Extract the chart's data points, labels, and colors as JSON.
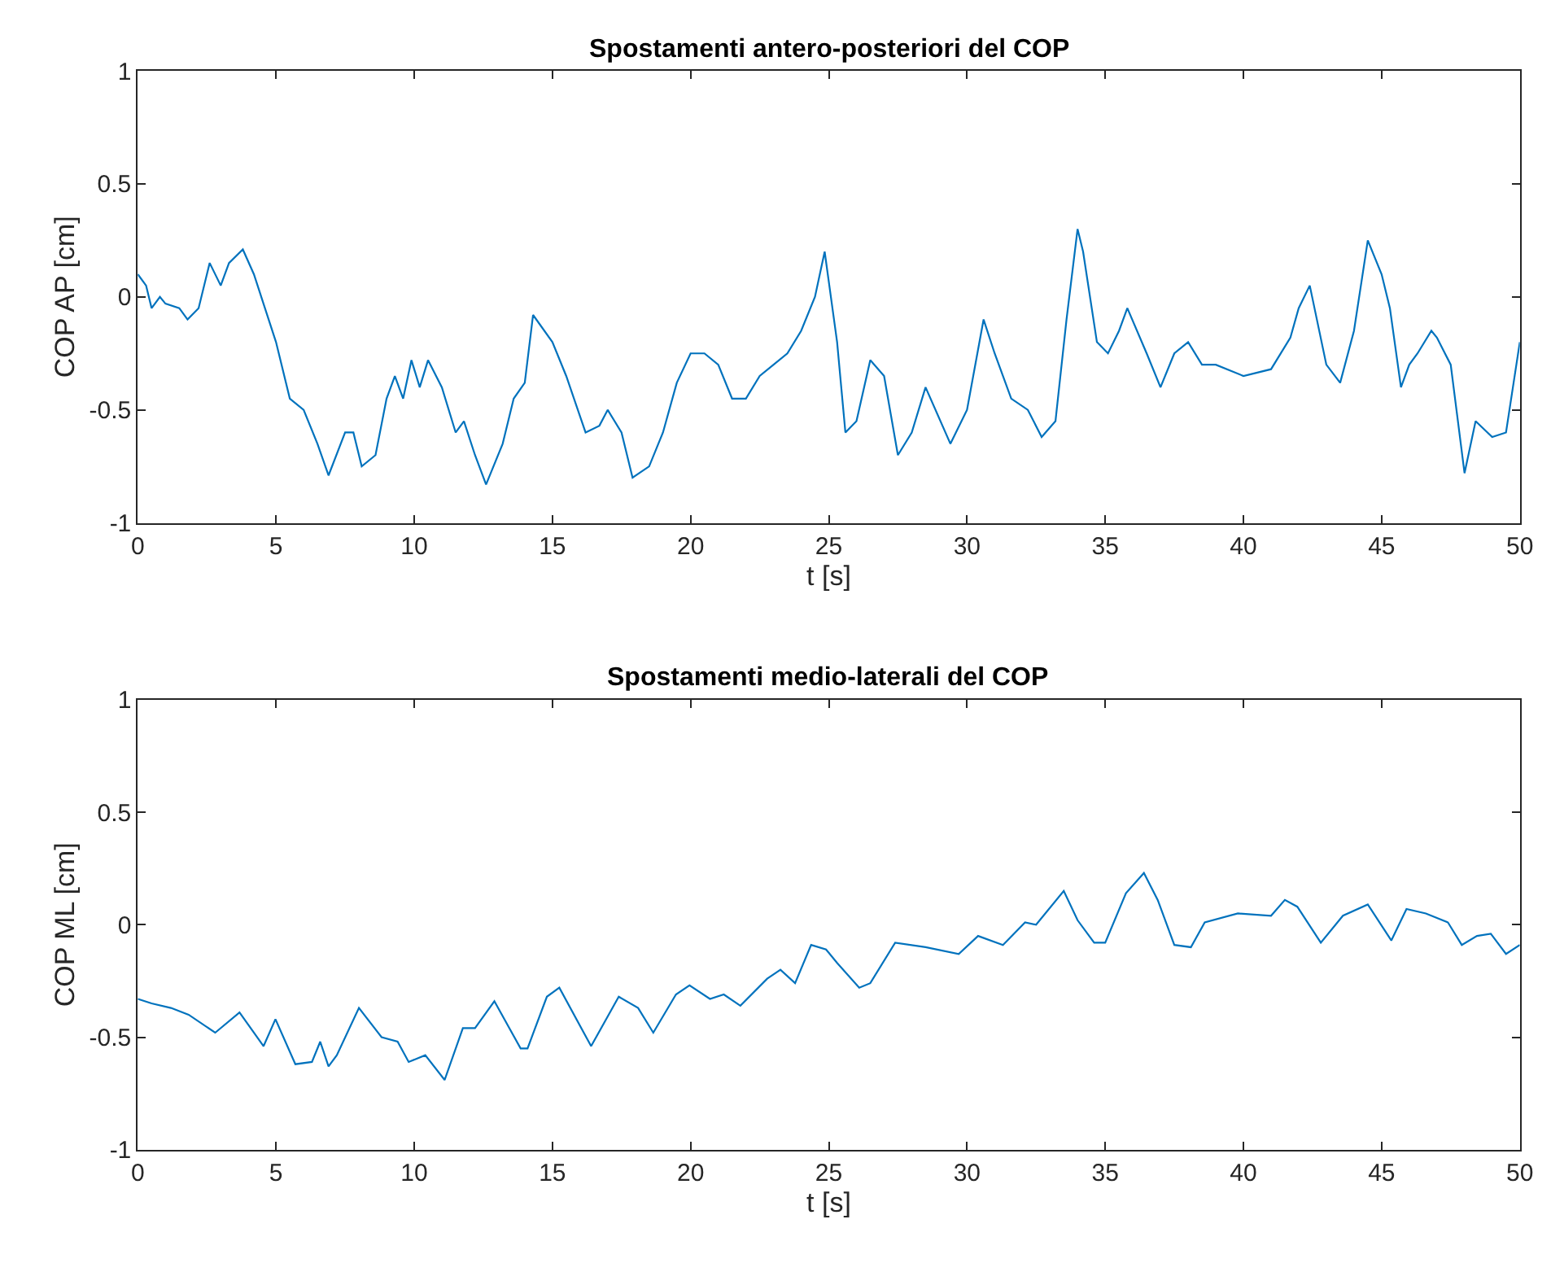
{
  "chart_data": [
    {
      "type": "line",
      "title": "Spostamenti antero-posteriori del COP",
      "xlabel": "t [s]",
      "ylabel": "COP AP [cm]",
      "xlim": [
        0,
        50
      ],
      "ylim": [
        -1,
        1
      ],
      "xticks": [
        0,
        5,
        10,
        15,
        20,
        25,
        30,
        35,
        40,
        45,
        50
      ],
      "yticks": [
        -1,
        -0.5,
        0,
        0.5,
        1
      ],
      "x": [
        0,
        0.3,
        0.5,
        0.8,
        1,
        1.5,
        1.8,
        2.2,
        2.6,
        3,
        3.3,
        3.8,
        4.2,
        4.6,
        5,
        5.5,
        6,
        6.5,
        6.9,
        7.5,
        7.8,
        8.1,
        8.6,
        9,
        9.3,
        9.6,
        9.9,
        10.2,
        10.5,
        11,
        11.5,
        11.8,
        12.2,
        12.6,
        13.2,
        13.6,
        14,
        14.3,
        15,
        15.5,
        16.2,
        16.7,
        17,
        17.5,
        17.9,
        18.5,
        19,
        19.5,
        20,
        20.5,
        21,
        21.5,
        22,
        22.5,
        23,
        23.5,
        24,
        24.5,
        24.85,
        25.3,
        25.6,
        26,
        26.5,
        27,
        27.5,
        28,
        28.5,
        29.4,
        30,
        30.6,
        31,
        31.6,
        32.2,
        32.7,
        33.2,
        33.6,
        34,
        34.2,
        34.7,
        35.1,
        35.5,
        35.8,
        36.5,
        37,
        37.5,
        38,
        38.5,
        39,
        40,
        41,
        41.7,
        42,
        42.4,
        43,
        43.5,
        44,
        44.5,
        45,
        45.3,
        45.7,
        46,
        46.3,
        46.8,
        47,
        47.5,
        48,
        48.4,
        49,
        49.5,
        50
      ],
      "series": [
        {
          "color": "#0072bd",
          "values": [
            0.1,
            0.05,
            -0.05,
            0.0,
            -0.03,
            -0.05,
            -0.1,
            -0.05,
            0.15,
            0.05,
            0.15,
            0.21,
            0.1,
            -0.05,
            -0.2,
            -0.45,
            -0.5,
            -0.65,
            -0.79,
            -0.6,
            -0.6,
            -0.75,
            -0.7,
            -0.45,
            -0.35,
            -0.45,
            -0.28,
            -0.4,
            -0.28,
            -0.4,
            -0.6,
            -0.55,
            -0.7,
            -0.83,
            -0.65,
            -0.45,
            -0.38,
            -0.08,
            -0.2,
            -0.35,
            -0.6,
            -0.57,
            -0.5,
            -0.6,
            -0.8,
            -0.75,
            -0.6,
            -0.38,
            -0.25,
            -0.25,
            -0.3,
            -0.45,
            -0.45,
            -0.35,
            -0.3,
            -0.25,
            -0.15,
            0.0,
            0.2,
            -0.2,
            -0.6,
            -0.55,
            -0.28,
            -0.35,
            -0.7,
            -0.6,
            -0.4,
            -0.65,
            -0.5,
            -0.1,
            -0.25,
            -0.45,
            -0.5,
            -0.62,
            -0.55,
            -0.1,
            0.3,
            0.2,
            -0.2,
            -0.25,
            -0.15,
            -0.05,
            -0.25,
            -0.4,
            -0.25,
            -0.2,
            -0.3,
            -0.3,
            -0.35,
            -0.32,
            -0.18,
            -0.05,
            0.05,
            -0.3,
            -0.38,
            -0.15,
            0.25,
            0.1,
            -0.05,
            -0.4,
            -0.3,
            -0.25,
            -0.15,
            -0.18,
            -0.3,
            -0.78,
            -0.55,
            -0.62,
            -0.6,
            -0.2
          ]
        }
      ]
    },
    {
      "type": "line",
      "title": "Spostamenti medio-laterali del COP",
      "xlabel": "t [s]",
      "ylabel": "COP ML [cm]",
      "xlim": [
        0,
        50
      ],
      "ylim": [
        -1,
        1
      ],
      "xticks": [
        0,
        5,
        10,
        15,
        20,
        25,
        30,
        35,
        40,
        45,
        50
      ],
      "yticks": [
        -1,
        -0.5,
        0,
        0.5,
        1
      ],
      "x": [
        0,
        0.5,
        1.2,
        1.84,
        2.8,
        3.68,
        4.55,
        4.98,
        5.7,
        6.3,
        6.6,
        6.9,
        7.2,
        8.0,
        8.82,
        9.4,
        9.8,
        10.4,
        11.1,
        11.76,
        12.2,
        12.9,
        13.85,
        14.1,
        14.8,
        15.25,
        16.4,
        17.4,
        18.1,
        18.65,
        19.47,
        19.96,
        20.7,
        21.2,
        21.8,
        22.77,
        23.25,
        23.78,
        24.36,
        24.9,
        25.3,
        26.1,
        26.5,
        27.4,
        28.5,
        29.7,
        30.4,
        31.3,
        32.1,
        32.5,
        33.5,
        34.0,
        34.6,
        35.0,
        35.75,
        36.4,
        36.9,
        37.5,
        38.1,
        38.6,
        39.8,
        41.0,
        41.5,
        41.95,
        42.8,
        43.6,
        44.5,
        45.35,
        45.9,
        46.6,
        47.4,
        47.9,
        48.45,
        48.95,
        49.5,
        50
      ],
      "series": [
        {
          "color": "#0072bd",
          "values": [
            -0.33,
            -0.35,
            -0.37,
            -0.4,
            -0.48,
            -0.39,
            -0.54,
            -0.42,
            -0.62,
            -0.61,
            -0.52,
            -0.63,
            -0.58,
            -0.37,
            -0.5,
            -0.52,
            -0.61,
            -0.58,
            -0.69,
            -0.46,
            -0.46,
            -0.34,
            -0.55,
            -0.55,
            -0.32,
            -0.28,
            -0.54,
            -0.32,
            -0.37,
            -0.48,
            -0.31,
            -0.27,
            -0.33,
            -0.31,
            -0.36,
            -0.24,
            -0.2,
            -0.26,
            -0.09,
            -0.11,
            -0.17,
            -0.28,
            -0.26,
            -0.08,
            -0.1,
            -0.13,
            -0.05,
            -0.09,
            0.01,
            0.0,
            0.15,
            0.02,
            -0.08,
            -0.08,
            0.14,
            0.23,
            0.11,
            -0.09,
            -0.1,
            0.01,
            0.05,
            0.04,
            0.11,
            0.08,
            -0.08,
            0.04,
            0.09,
            -0.07,
            0.07,
            0.05,
            0.01,
            -0.09,
            -0.05,
            -0.04,
            -0.13,
            -0.09
          ]
        }
      ]
    }
  ]
}
